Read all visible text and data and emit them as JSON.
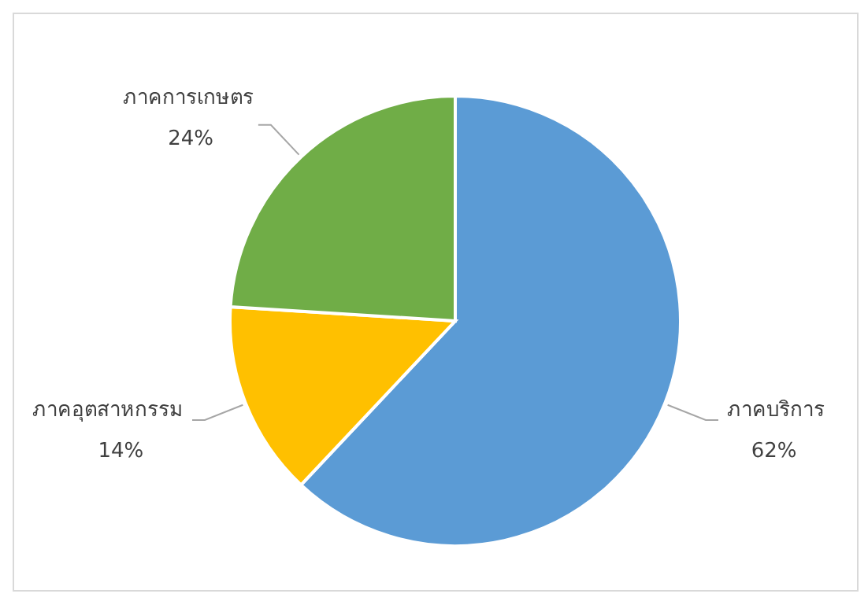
{
  "chart_data": {
    "type": "pie",
    "categories": [
      "ภาคบริการ",
      "ภาคอุตสาหกรรม",
      "ภาคการเกษตร"
    ],
    "values": [
      62,
      14,
      24
    ],
    "colors": [
      "#5b9bd5",
      "#ffc000",
      "#70ad47"
    ],
    "value_labels": [
      "62%",
      "14%",
      "24%"
    ]
  }
}
